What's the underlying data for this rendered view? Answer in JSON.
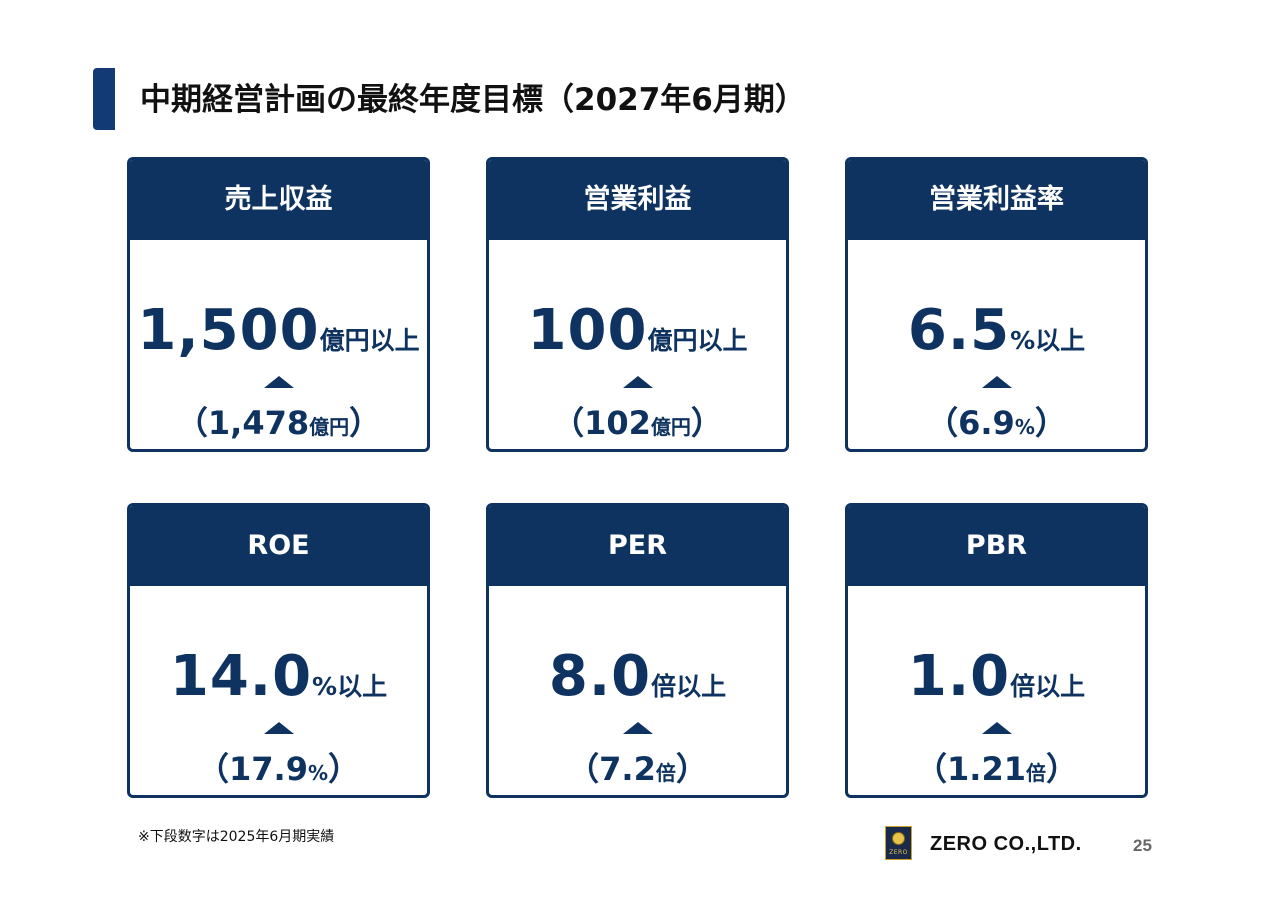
{
  "title": "中期経営計画の最終年度目標（2027年6月期）",
  "cards": [
    {
      "label": "売上収益",
      "value": "1,500",
      "unit": "億円以上",
      "prev_value": "1,478",
      "prev_unit": "億円"
    },
    {
      "label": "営業利益",
      "value": "100",
      "unit": "億円以上",
      "prev_value": "102",
      "prev_unit": "億円"
    },
    {
      "label": "営業利益率",
      "value": "6.5",
      "unit": "%以上",
      "prev_value": "6.9",
      "prev_unit": "%"
    },
    {
      "label": "ROE",
      "value": "14.0",
      "unit": "%以上",
      "prev_value": "17.9",
      "prev_unit": "%"
    },
    {
      "label": "PER",
      "value": "8.0",
      "unit": "倍以上",
      "prev_value": "7.2",
      "prev_unit": "倍"
    },
    {
      "label": "PBR",
      "value": "1.0",
      "unit": "倍以上",
      "prev_value": "1.21",
      "prev_unit": "倍"
    }
  ],
  "paren_open": "（",
  "paren_close": "）",
  "footnote": "※下段数字は2025年6月期実績",
  "logo_text": "ZERO",
  "company": "ZERO CO.,LTD.",
  "page_number": "25",
  "colors": {
    "navy": "#0f3360",
    "accent_bar": "#123a75"
  },
  "icons": [
    "up-triangle-icon",
    "company-logo"
  ]
}
